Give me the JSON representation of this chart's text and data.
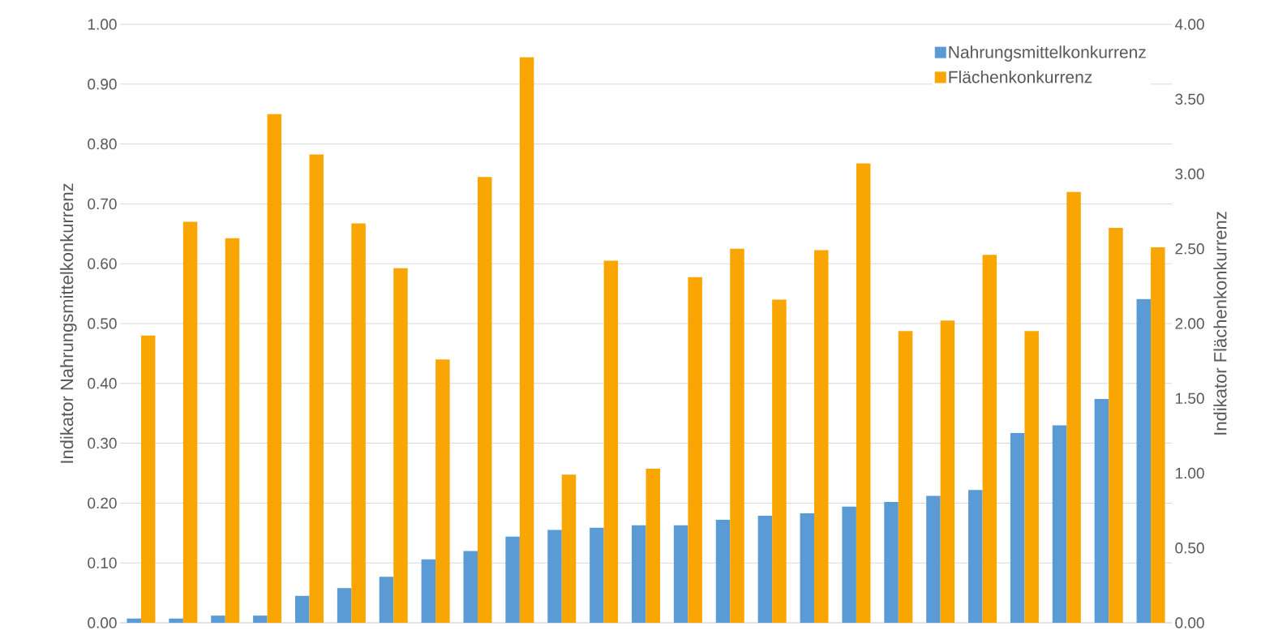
{
  "chart_data": {
    "type": "bar",
    "ylabel": "Indikator Nahrungsmittelkonkurrenz",
    "y2label": "Indikator Flächenkonkurrenz",
    "categories": [
      null,
      null,
      null,
      null,
      null,
      null,
      null,
      null,
      null,
      null,
      null,
      null,
      null,
      null,
      null,
      null,
      null,
      null,
      null,
      null,
      null,
      null,
      null,
      null,
      null
    ],
    "series": [
      {
        "name": "Nahrungsmittelkonkurrenz",
        "color": "#5b9bd5",
        "values": [
          0.007,
          0.007,
          0.012,
          0.012,
          0.045,
          0.058,
          0.077,
          0.106,
          0.12,
          0.144,
          0.155,
          0.159,
          0.163,
          0.163,
          0.172,
          0.179,
          0.183,
          0.194,
          0.202,
          0.212,
          0.222,
          0.317,
          0.33,
          0.374,
          0.541
        ]
      },
      {
        "name": "Flächenkonkurrenz",
        "color": "#f9a602",
        "axis": "y2",
        "values": [
          1.92,
          2.68,
          2.57,
          3.4,
          3.13,
          2.67,
          2.37,
          1.76,
          2.98,
          3.78,
          0.99,
          2.42,
          1.03,
          2.31,
          2.5,
          2.16,
          2.49,
          3.07,
          1.95,
          2.02,
          2.46,
          1.95,
          2.88,
          2.64,
          2.51
        ]
      }
    ],
    "ylim": [
      0,
      1
    ],
    "yticks": [
      {
        "value": 0,
        "label": "0.00"
      },
      {
        "value": 0.1,
        "label": "0.10"
      },
      {
        "value": 0.2,
        "label": "0.20"
      },
      {
        "value": 0.3,
        "label": "0.30"
      },
      {
        "value": 0.4,
        "label": "0.40"
      },
      {
        "value": 0.5,
        "label": "0.50"
      },
      {
        "value": 0.6,
        "label": "0.60"
      },
      {
        "value": 0.7,
        "label": "0.70"
      },
      {
        "value": 0.8,
        "label": "0.80"
      },
      {
        "value": 0.9,
        "label": "0.90"
      },
      {
        "value": 1,
        "label": "1.00"
      }
    ],
    "y2lim": [
      0,
      4
    ],
    "y2ticks": [
      {
        "value": 0,
        "label": "0.00"
      },
      {
        "value": 0.5,
        "label": "0.50"
      },
      {
        "value": 1,
        "label": "1.00"
      },
      {
        "value": 1.5,
        "label": "1.50"
      },
      {
        "value": 2,
        "label": "2.00"
      },
      {
        "value": 2.5,
        "label": "2.50"
      },
      {
        "value": 3,
        "label": "3.00"
      },
      {
        "value": 3.5,
        "label": "3.50"
      },
      {
        "value": 4,
        "label": "4.00"
      }
    ],
    "grid": "y",
    "legend": "top right"
  }
}
